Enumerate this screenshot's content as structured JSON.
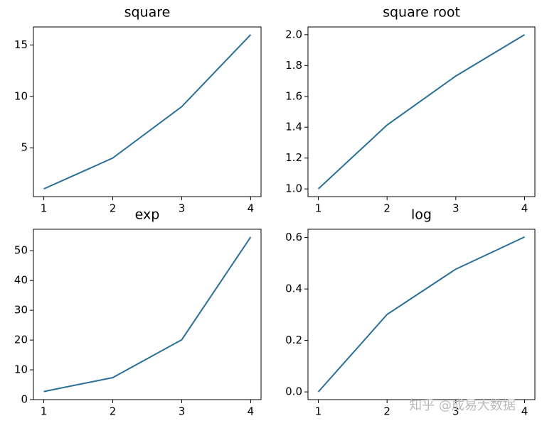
{
  "chart_data": [
    {
      "type": "line",
      "title": "square",
      "x": [
        1,
        2,
        3,
        4
      ],
      "values": [
        1,
        4,
        9,
        16
      ],
      "color": "#2a6f97",
      "xlim": [
        0.85,
        4.15
      ],
      "ylim": [
        0.25,
        16.75
      ],
      "xticks": [
        1,
        2,
        3,
        4
      ],
      "yticks": [
        5,
        10,
        15
      ]
    },
    {
      "type": "line",
      "title": "square root",
      "x": [
        1,
        2,
        3,
        4
      ],
      "values": [
        1,
        1.414,
        1.732,
        2
      ],
      "color": "#2a6f97",
      "xlim": [
        0.85,
        4.15
      ],
      "ylim": [
        0.95,
        2.05
      ],
      "xticks": [
        1,
        2,
        3,
        4
      ],
      "yticks": [
        {
          "value": 1,
          "label": "1.0"
        },
        {
          "value": 1.2,
          "label": "1.2"
        },
        {
          "value": 1.4,
          "label": "1.4"
        },
        {
          "value": 1.6,
          "label": "1.6"
        },
        {
          "value": 1.8,
          "label": "1.8"
        },
        {
          "value": 2,
          "label": "2.0"
        }
      ]
    },
    {
      "type": "line",
      "title": "exp",
      "x": [
        1,
        2,
        3,
        4
      ],
      "values": [
        2.718,
        7.389,
        20.09,
        54.6
      ],
      "color": "#2a6f97",
      "xlim": [
        0.85,
        4.15
      ],
      "ylim": [
        0,
        57.2
      ],
      "xticks": [
        1,
        2,
        3,
        4
      ],
      "yticks": [
        0,
        10,
        20,
        30,
        40,
        50
      ]
    },
    {
      "type": "line",
      "title": "log",
      "x": [
        1,
        2,
        3,
        4
      ],
      "values": [
        0,
        0.301,
        0.477,
        0.602
      ],
      "color": "#2a6f97",
      "xlim": [
        0.85,
        4.15
      ],
      "ylim": [
        -0.03,
        0.632
      ],
      "xticks": [
        1,
        2,
        3,
        4
      ],
      "yticks": [
        {
          "value": 0,
          "label": "0.0"
        },
        {
          "value": 0.2,
          "label": "0.2"
        },
        {
          "value": 0.4,
          "label": "0.4"
        },
        {
          "value": 0.6,
          "label": "0.6"
        }
      ]
    }
  ],
  "watermark": "知乎 @成易大数据"
}
